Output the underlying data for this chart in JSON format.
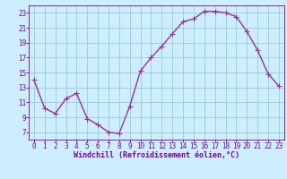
{
  "x": [
    0,
    1,
    2,
    3,
    4,
    5,
    6,
    7,
    8,
    9,
    10,
    11,
    12,
    13,
    14,
    15,
    16,
    17,
    18,
    19,
    20,
    21,
    22,
    23
  ],
  "y": [
    14.0,
    10.2,
    9.5,
    11.5,
    12.2,
    8.8,
    8.0,
    7.0,
    6.8,
    10.5,
    15.2,
    17.0,
    18.5,
    20.2,
    21.8,
    22.2,
    23.2,
    23.2,
    23.0,
    22.5,
    20.5,
    18.0,
    14.8,
    13.2
  ],
  "line_color": "#993399",
  "marker": "+",
  "marker_size": 4,
  "background_color": "#cceeff",
  "grid_color": "#99cccc",
  "xlabel": "Windchill (Refroidissement éolien,°C)",
  "xlim": [
    -0.5,
    23.5
  ],
  "ylim": [
    6,
    24
  ],
  "yticks": [
    7,
    9,
    11,
    13,
    15,
    17,
    19,
    21,
    23
  ],
  "xticks": [
    0,
    1,
    2,
    3,
    4,
    5,
    6,
    7,
    8,
    9,
    10,
    11,
    12,
    13,
    14,
    15,
    16,
    17,
    18,
    19,
    20,
    21,
    22,
    23
  ],
  "tick_color": "#7700aa",
  "label_color": "#7700aa",
  "spine_color": "#7700aa",
  "line_width": 1.0,
  "tick_fontsize": 5.5,
  "xlabel_fontsize": 6.0
}
